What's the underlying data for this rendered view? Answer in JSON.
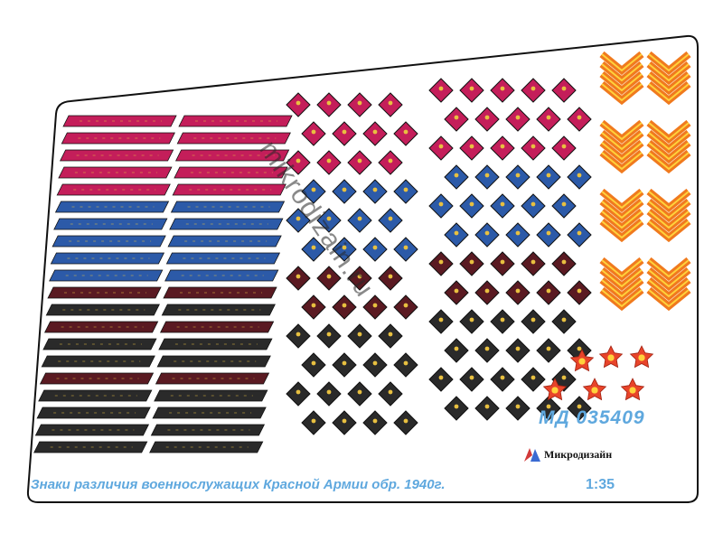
{
  "sheet": {
    "caption": "Знаки различия военнослужащих Красной Армии обр. 1940г.",
    "scale": "1:35",
    "product_code": "МД 035409",
    "brand_name": "Микродизайн",
    "brand_logo_icon": "microdesign-logo-icon",
    "watermark": "mikrodizain.ru"
  },
  "colors": {
    "crimson": "#c41e5a",
    "blue": "#2c5aa8",
    "maroon": "#5a1a22",
    "black": "#2a2a2a",
    "chevron_orange": "#f07a1e",
    "chevron_yellow": "#ffd23c",
    "star_red": "#e8442a",
    "caption_blue": "#5fa8de"
  },
  "decals": {
    "stripe_rows": [
      "crimson",
      "crimson",
      "crimson",
      "crimson",
      "crimson",
      "blue",
      "blue",
      "blue",
      "blue",
      "blue",
      "maroon",
      "black",
      "maroon",
      "black",
      "black",
      "maroon",
      "black",
      "black",
      "black",
      "black"
    ],
    "chevron_count": 8,
    "star_count": 6
  }
}
